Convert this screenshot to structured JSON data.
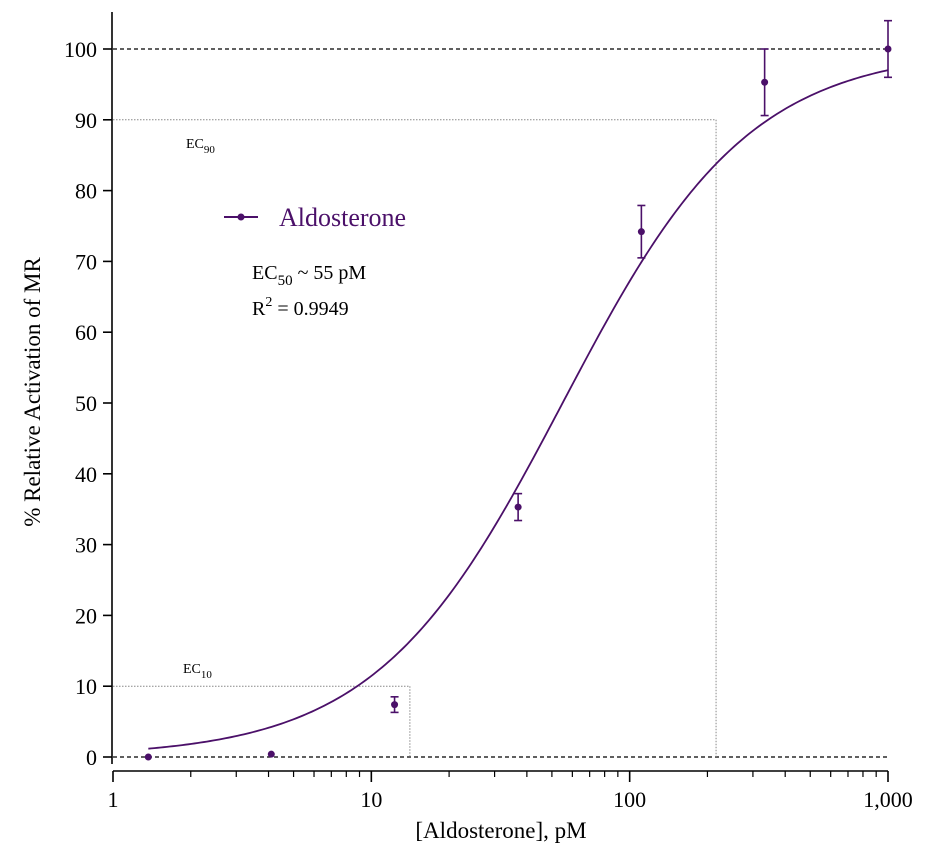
{
  "chart_data": {
    "type": "scatter",
    "xscale": "log",
    "xlabel": "[Aldosterone], pM",
    "ylabel": "% Relative Activation of MR",
    "xlim": [
      1,
      1000
    ],
    "ylim": [
      0,
      100
    ],
    "xticks": [
      {
        "value": 1,
        "label": "1"
      },
      {
        "value": 10,
        "label": "10"
      },
      {
        "value": 100,
        "label": "100"
      },
      {
        "value": 1000,
        "label": "1,000"
      }
    ],
    "yticks": [
      {
        "value": 0,
        "label": "0"
      },
      {
        "value": 10,
        "label": "10"
      },
      {
        "value": 20,
        "label": "20"
      },
      {
        "value": 30,
        "label": "30"
      },
      {
        "value": 40,
        "label": "40"
      },
      {
        "value": 50,
        "label": "50"
      },
      {
        "value": 60,
        "label": "60"
      },
      {
        "value": 70,
        "label": "70"
      },
      {
        "value": 80,
        "label": "80"
      },
      {
        "value": 90,
        "label": "90"
      },
      {
        "value": 100,
        "label": "100"
      }
    ],
    "series": [
      {
        "name": "Aldosterone",
        "color": "#4B1069",
        "points": [
          {
            "x": 1.37,
            "y": 0.0,
            "err": 0.0
          },
          {
            "x": 4.1,
            "y": 0.4,
            "err": 0.0
          },
          {
            "x": 12.3,
            "y": 7.4,
            "err": 1.1
          },
          {
            "x": 37.0,
            "y": 35.3,
            "err": 1.9
          },
          {
            "x": 111,
            "y": 74.2,
            "err": 3.7
          },
          {
            "x": 333,
            "y": 95.3,
            "err": 4.7
          },
          {
            "x": 1000,
            "y": 100.0,
            "err": 4.0
          }
        ],
        "fit": {
          "bottom": 0,
          "top": 100,
          "ec50": 55,
          "hill": 1.2
        }
      }
    ],
    "reference_lines": {
      "horizontal_dashed": [
        0,
        100
      ],
      "horizontal_dotted": [
        10,
        90
      ],
      "vertical_dotted": [
        14.1,
        216
      ]
    },
    "grid": false,
    "legend_position": "upper-left",
    "annotations": {
      "ec90_main": "EC",
      "ec90_sub": "90",
      "ec10_main": "EC",
      "ec10_sub": "10",
      "ec50_main": "EC",
      "ec50_sub": "50",
      "ec50_value": " ~ 55 pM",
      "r2_main": "R",
      "r2_sup": "2",
      "r2_value": " = 0.9949"
    }
  }
}
